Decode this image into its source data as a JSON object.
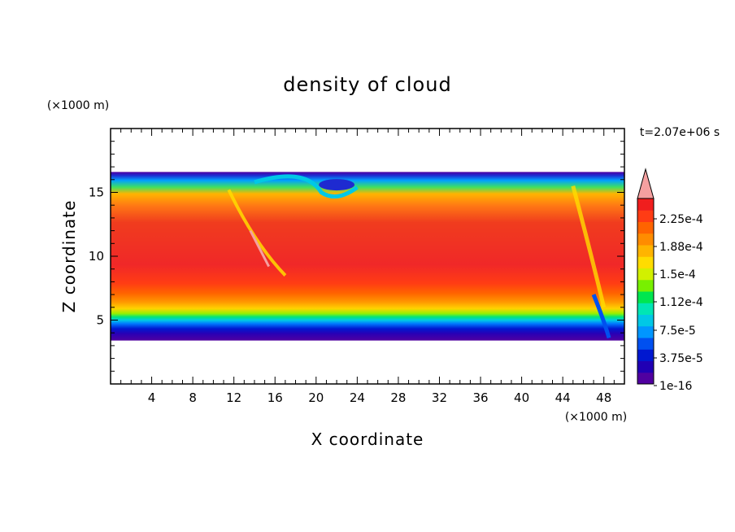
{
  "chart_data": {
    "type": "heatmap",
    "title": "density of cloud",
    "xlabel": "X coordinate",
    "ylabel": "Z coordinate",
    "x_unit_label": "(×1000 m)",
    "y_unit_label": "(×1000 m)",
    "time_label": "t=2.07e+06 s",
    "xlim": [
      0,
      50
    ],
    "ylim": [
      0,
      20
    ],
    "x_ticks": [
      4,
      8,
      12,
      16,
      20,
      24,
      28,
      32,
      36,
      40,
      44,
      48
    ],
    "x_tick_labels": [
      "4",
      "8",
      "12",
      "16",
      "20",
      "24",
      "28",
      "32",
      "36",
      "40",
      "44",
      "48"
    ],
    "y_ticks": [
      5,
      10,
      15
    ],
    "y_tick_labels": [
      "5",
      "10",
      "15"
    ],
    "colorbar": {
      "labels": [
        "2.25e-4",
        "1.88e-4",
        "1.5e-4",
        "1.12e-4",
        "7.5e-5",
        "3.75e-5",
        "1e-16"
      ],
      "label_values": [
        0.000225,
        0.000188,
        0.00015,
        0.000112,
        7.5e-05,
        3.75e-05,
        1e-16
      ],
      "colors_bottom_to_top": [
        "#5000a0",
        "#2000b4",
        "#0018d0",
        "#0050f0",
        "#0096ff",
        "#00c8e6",
        "#00e6b4",
        "#00e650",
        "#78f000",
        "#d2f000",
        "#ffdc00",
        "#ffb400",
        "#ff8c00",
        "#ff6400",
        "#ff3c14",
        "#f01e1e"
      ],
      "extend_color": "#f5a0a0"
    },
    "cloud_layer": {
      "base_km": 3.4,
      "top_km": 16.6,
      "max_density_band_km": [
        8,
        14
      ]
    }
  }
}
